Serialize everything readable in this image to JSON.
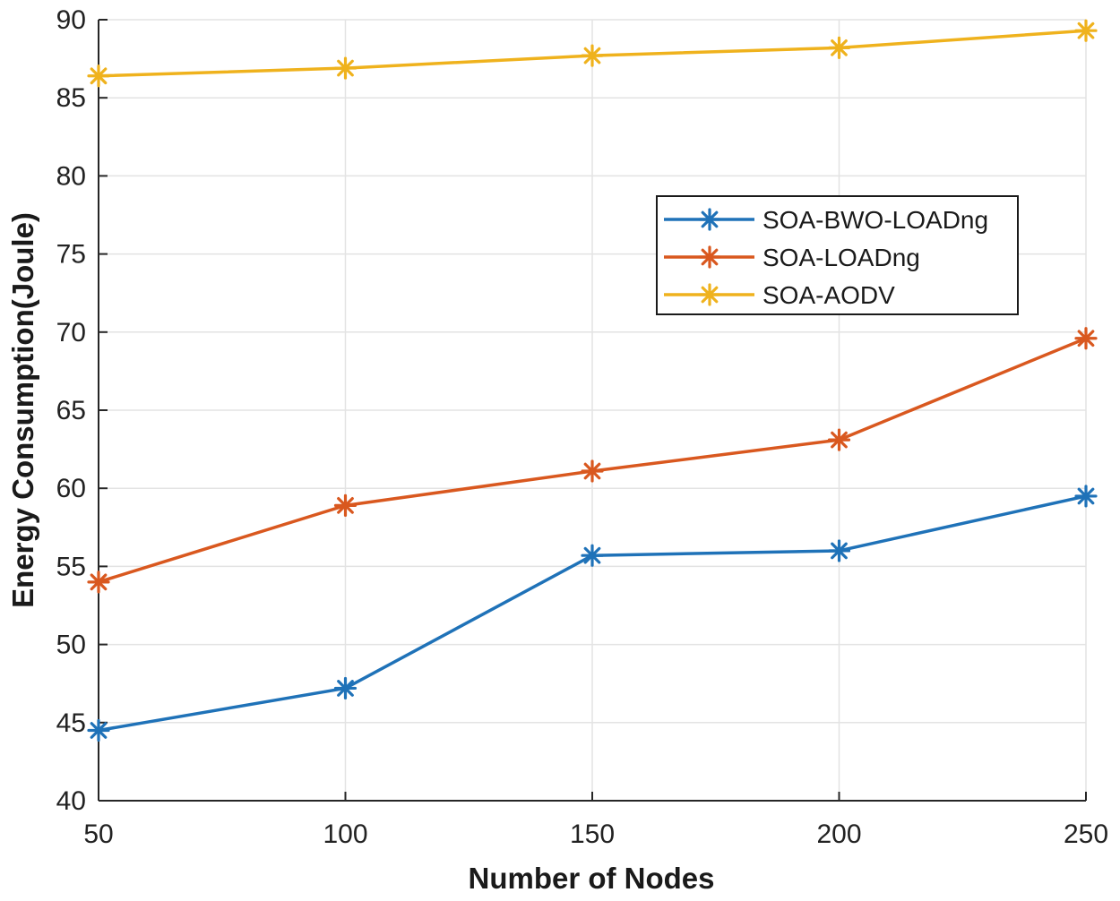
{
  "chart_data": {
    "type": "line",
    "title": "",
    "xlabel": "Number of Nodes",
    "ylabel": "Energy Consumption(Joule)",
    "x": [
      50,
      100,
      150,
      200,
      250
    ],
    "xlim": [
      50,
      250
    ],
    "ylim": [
      40,
      90
    ],
    "xticks": [
      "50",
      "100",
      "150",
      "200",
      "250"
    ],
    "yticks": [
      "40",
      "45",
      "50",
      "55",
      "60",
      "65",
      "70",
      "75",
      "80",
      "85",
      "90"
    ],
    "grid": true,
    "legend_position": "upper-right-middle",
    "marker": "asterisk",
    "series": [
      {
        "name": "SOA-BWO-LOADng",
        "color": "#1f72b8",
        "values": [
          44.5,
          47.2,
          55.7,
          56.0,
          59.5
        ]
      },
      {
        "name": "SOA-LOADng",
        "color": "#d9581f",
        "values": [
          54.0,
          58.9,
          61.1,
          63.1,
          69.6
        ]
      },
      {
        "name": "SOA-AODV",
        "color": "#efb21d",
        "values": [
          86.4,
          86.9,
          87.7,
          88.2,
          89.3
        ]
      }
    ]
  }
}
